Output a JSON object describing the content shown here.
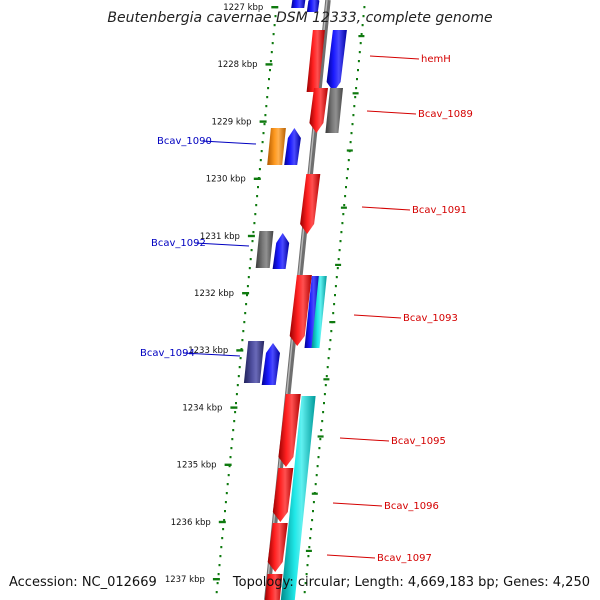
{
  "title": "Beutenbergia cavernae DSM 12333, complete genome",
  "accession": "Accession: NC_012669",
  "topology": "Topology: circular; Length: 4,669,183 bp; Genes: 4,250",
  "colors": {
    "backbone": "#8a8a8a",
    "tick": "#0f7a0f",
    "forward_label": "#d40000",
    "reverse_label": "#0000c0",
    "gene_red": "#ff0000",
    "gene_blue": "#0000ff",
    "gene_cyan": "#00d8d8",
    "gene_gray": "#6e6e6e",
    "gene_orange": "#ff8800",
    "gene_purple": "#404090"
  },
  "ruler": {
    "ticks": [
      "1227 kbp",
      "1228 kbp",
      "1229 kbp",
      "1230 kbp",
      "1231 kbp",
      "1232 kbp",
      "1233 kbp",
      "1234 kbp",
      "1235 kbp",
      "1236 kbp",
      "1237 kbp"
    ]
  },
  "gene_labels": [
    {
      "text": "hemH",
      "strand": "forward"
    },
    {
      "text": "Bcav_1089",
      "strand": "forward"
    },
    {
      "text": "Bcav_1090",
      "strand": "reverse"
    },
    {
      "text": "Bcav_1091",
      "strand": "forward"
    },
    {
      "text": "Bcav_1092",
      "strand": "reverse"
    },
    {
      "text": "Bcav_1093",
      "strand": "forward"
    },
    {
      "text": "Bcav_1094",
      "strand": "reverse"
    },
    {
      "text": "Bcav_1095",
      "strand": "forward"
    },
    {
      "text": "Bcav_1096",
      "strand": "forward"
    },
    {
      "text": "Bcav_1097",
      "strand": "forward"
    }
  ]
}
